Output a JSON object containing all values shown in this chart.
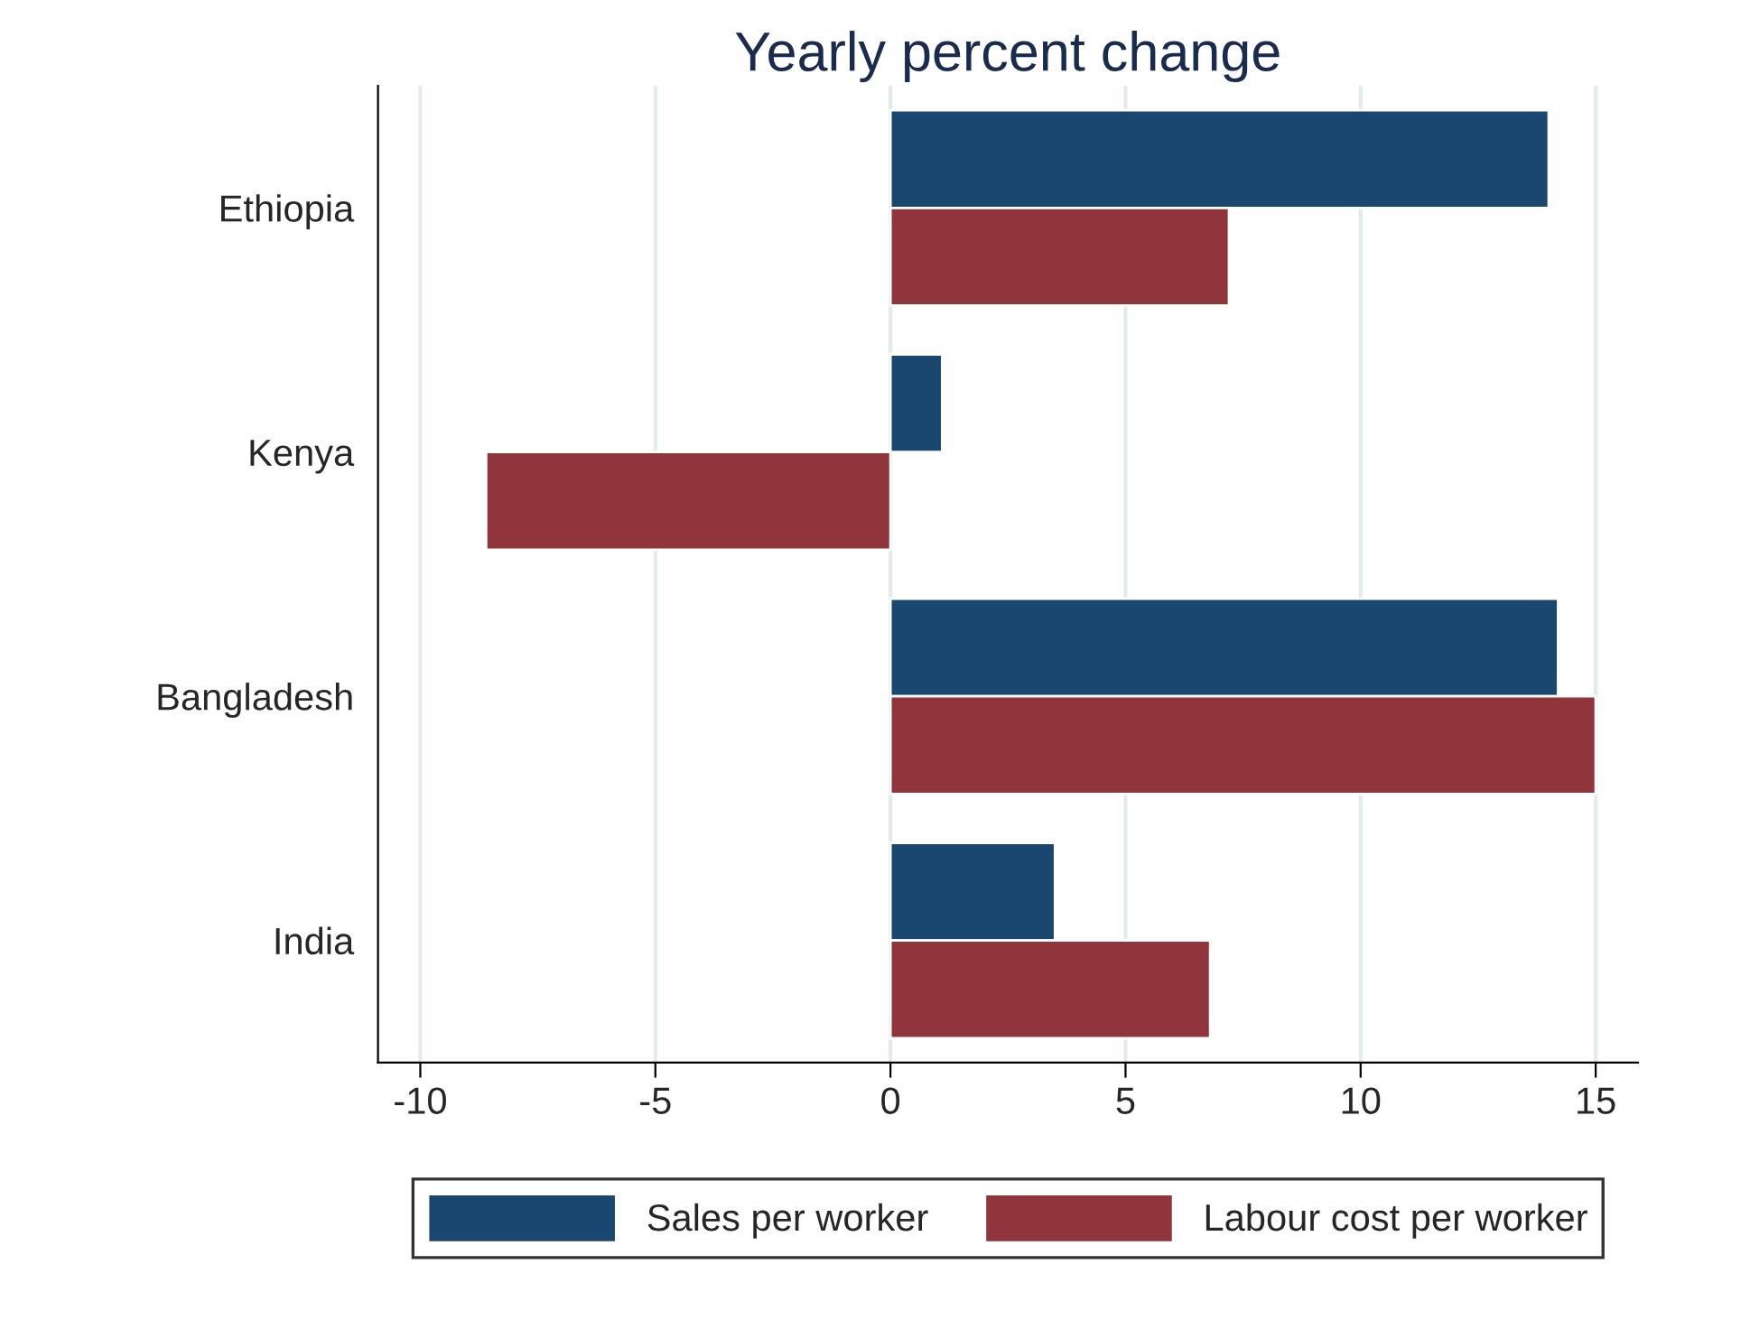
{
  "chart_data": {
    "type": "bar",
    "orientation": "horizontal",
    "title": "Yearly percent change",
    "categories": [
      "Ethiopia",
      "Kenya",
      "Bangladesh",
      "India"
    ],
    "series": [
      {
        "name": "Sales per worker",
        "color": "#1a476f",
        "values": [
          14.0,
          1.1,
          14.2,
          3.5
        ]
      },
      {
        "name": "Labour cost per worker",
        "color": "#90353b",
        "values": [
          7.2,
          -8.6,
          15.0,
          6.8
        ]
      }
    ],
    "xlim": [
      -10.9,
      15.9
    ],
    "xticks": [
      -10,
      -5,
      0,
      5,
      10,
      15
    ],
    "grid": "x",
    "legend": "bottom"
  }
}
